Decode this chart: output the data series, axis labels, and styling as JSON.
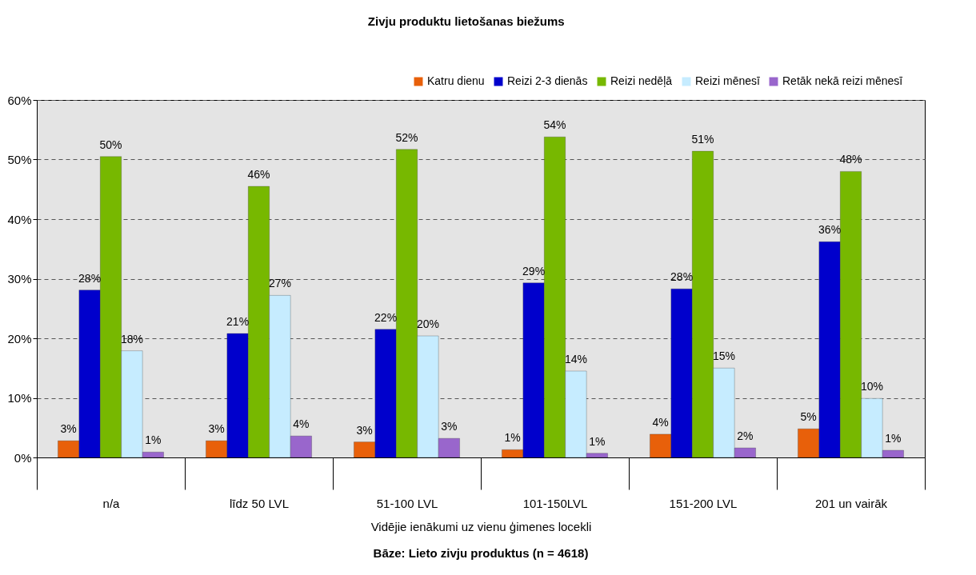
{
  "chart_data": {
    "type": "bar",
    "title": "Zivju produktu lietošanas biežums",
    "xlabel": "Vidējie ienākumi uz vienu ģimenes locekli",
    "annotations": [
      "Bāze:  Lieto zivju produktus (n = 4618)"
    ],
    "categories": [
      "n/a",
      "līdz 50 LVL",
      "51-100 LVL",
      "101-150LVL",
      "151-200 LVL",
      "201 un vairāk"
    ],
    "series": [
      {
        "name": "Katru dienu",
        "color": "#e8600a",
        "values": [
          2.8,
          2.8,
          2.6,
          1.3,
          3.9,
          4.8
        ],
        "value_labels": [
          "3%",
          "3%",
          "3%",
          "1%",
          "4%",
          "5%"
        ]
      },
      {
        "name": "Reizi 2-3 dienās",
        "color": "#0000cc",
        "values": [
          28.1,
          20.8,
          21.5,
          29.3,
          28.3,
          36.2
        ],
        "value_labels": [
          "28%",
          "21%",
          "22%",
          "29%",
          "28%",
          "36%"
        ]
      },
      {
        "name": "Reizi nedēļā",
        "color": "#77b800",
        "values": [
          50.5,
          45.5,
          51.7,
          53.8,
          51.4,
          48.0
        ],
        "value_labels": [
          "50%",
          "46%",
          "52%",
          "54%",
          "51%",
          "48%"
        ]
      },
      {
        "name": "Reizi mēnesī",
        "color": "#c6ecff",
        "values": [
          17.9,
          27.2,
          20.4,
          14.5,
          15.0,
          9.9
        ],
        "value_labels": [
          "18%",
          "27%",
          "20%",
          "14%",
          "15%",
          "10%"
        ]
      },
      {
        "name": "Retāk nekā reizi mēnesī",
        "color": "#9966cc",
        "values": [
          0.9,
          3.6,
          3.2,
          0.7,
          1.6,
          1.2
        ],
        "value_labels": [
          "1%",
          "4%",
          "3%",
          "1%",
          "2%",
          "1%"
        ]
      }
    ],
    "ylim": [
      0,
      60
    ],
    "yticks": [
      {
        "value": 0,
        "label": "0%"
      },
      {
        "value": 10,
        "label": "10%"
      },
      {
        "value": 20,
        "label": "20%"
      },
      {
        "value": 30,
        "label": "30%"
      },
      {
        "value": 40,
        "label": "40%"
      },
      {
        "value": 50,
        "label": "50%"
      },
      {
        "value": 60,
        "label": "60%"
      }
    ],
    "grid": "y",
    "line_style": "dashed",
    "legend": "top right"
  }
}
